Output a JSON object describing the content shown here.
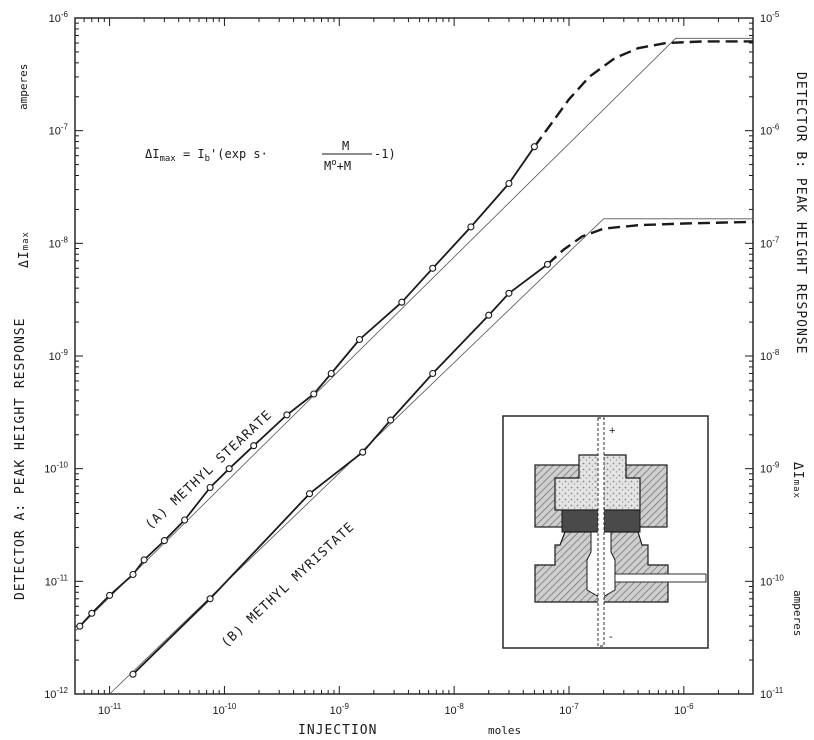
{
  "chart_data": {
    "type": "line",
    "x_scale": "log",
    "y_scale": "log",
    "xlim": [
      5e-12,
      4e-06
    ],
    "ylim_left": [
      1e-12,
      1e-06
    ],
    "ylim_right": [
      1e-11,
      1e-05
    ],
    "grid": false,
    "legend": "none",
    "x_ticks": [
      {
        "v": 1e-11,
        "m": "10",
        "e": "-11"
      },
      {
        "v": 1e-10,
        "m": "10",
        "e": "-10"
      },
      {
        "v": 1e-09,
        "m": "10",
        "e": "-9"
      },
      {
        "v": 1e-08,
        "m": "10",
        "e": "-8"
      },
      {
        "v": 1e-07,
        "m": "10",
        "e": "-7"
      },
      {
        "v": 1e-06,
        "m": "10",
        "e": "-6"
      }
    ],
    "y_left_ticks": [
      {
        "v": 1e-12,
        "m": "10",
        "e": "-12"
      },
      {
        "v": 1e-11,
        "m": "10",
        "e": "-11"
      },
      {
        "v": 1e-10,
        "m": "10",
        "e": "-10"
      },
      {
        "v": 1e-09,
        "m": "10",
        "e": "-9"
      },
      {
        "v": 1e-08,
        "m": "10",
        "e": "-8"
      },
      {
        "v": 1e-07,
        "m": "10",
        "e": "-7"
      },
      {
        "v": 1e-06,
        "m": "10",
        "e": "-6"
      }
    ],
    "y_right_ticks": [
      {
        "v": 1e-11,
        "m": "10",
        "e": "-11"
      },
      {
        "v": 1e-10,
        "m": "10",
        "e": "-10"
      },
      {
        "v": 1e-09,
        "m": "10",
        "e": "-9"
      },
      {
        "v": 1e-08,
        "m": "10",
        "e": "-8"
      },
      {
        "v": 1e-07,
        "m": "10",
        "e": "-7"
      },
      {
        "v": 1e-06,
        "m": "10",
        "e": "-6"
      },
      {
        "v": 1e-05,
        "m": "10",
        "e": "-5"
      }
    ],
    "xlabel": "INJECTION",
    "xunit": "moles",
    "ylabel_left": "DETECTOR A: PEAK HEIGHT RESPONSE",
    "ylabel_left_symbol": "ΔI",
    "ylabel_left_symbol_sub": "max",
    "ylabel_left_unit": "amperes",
    "ylabel_right": "DETECTOR B: PEAK HEIGHT RESPONSE",
    "ylabel_right_symbol": "ΔI",
    "ylabel_right_symbol_sub": "max",
    "ylabel_right_unit": "amperes",
    "equation": {
      "lhs": "ΔI",
      "lhs_sub": "max",
      "mid": " = I",
      "mid_sub": "b",
      "rest": "'(exp s·",
      "num": "M",
      "den_a": "M",
      "den_sup": "o",
      "den_b": "+M",
      "tail": "-1)"
    },
    "series": [
      {
        "name": "(A) METHYL STEARATE",
        "axis": "left",
        "points": [
          [
            5.5e-12,
            4e-12
          ],
          [
            7e-12,
            5.2e-12
          ],
          [
            1e-11,
            7.5e-12
          ],
          [
            1.6e-11,
            1.15e-11
          ],
          [
            2e-11,
            1.55e-11
          ],
          [
            3e-11,
            2.3e-11
          ],
          [
            4.5e-11,
            3.5e-11
          ],
          [
            7.5e-11,
            6.8e-11
          ],
          [
            1.1e-10,
            1e-10
          ],
          [
            1.8e-10,
            1.6e-10
          ],
          [
            3.5e-10,
            3e-10
          ],
          [
            6e-10,
            4.6e-10
          ],
          [
            8.5e-10,
            7e-10
          ],
          [
            1.5e-09,
            1.4e-09
          ],
          [
            3.5e-09,
            3e-09
          ],
          [
            6.5e-09,
            6e-09
          ],
          [
            1.4e-08,
            1.4e-08
          ],
          [
            3e-08,
            3.4e-08
          ],
          [
            5e-08,
            7.2e-08
          ]
        ],
        "fit_dashed": [
          [
            5e-08,
            7.2e-08
          ],
          [
            7e-08,
            1.15e-07
          ],
          [
            1e-07,
            1.9e-07
          ],
          [
            1.5e-07,
            3e-07
          ],
          [
            2.5e-07,
            4.4e-07
          ],
          [
            4e-07,
            5.4e-07
          ],
          [
            7e-07,
            6e-07
          ],
          [
            1.5e-06,
            6.2e-07
          ],
          [
            4e-06,
            6.2e-07
          ]
        ],
        "asymptote": [
          [
            5e-12,
            3.6e-12
          ],
          [
            8.5e-07,
            6.6e-07
          ],
          [
            4e-06,
            6.6e-07
          ]
        ]
      },
      {
        "name": "(B) METHYL MYRISTATE",
        "axis": "right",
        "points": [
          [
            1.6e-11,
            1.5e-11
          ],
          [
            7.5e-11,
            7e-11
          ],
          [
            5.5e-10,
            6e-10
          ],
          [
            1.6e-09,
            1.4e-09
          ],
          [
            2.8e-09,
            2.7e-09
          ],
          [
            6.5e-09,
            7e-09
          ],
          [
            2e-08,
            2.3e-08
          ],
          [
            3e-08,
            3.6e-08
          ],
          [
            6.5e-08,
            6.5e-08
          ]
        ],
        "fit_dashed": [
          [
            6.5e-08,
            6.5e-08
          ],
          [
            9e-08,
            8.8e-08
          ],
          [
            1.3e-07,
            1.15e-07
          ],
          [
            2e-07,
            1.35e-07
          ],
          [
            4e-07,
            1.45e-07
          ],
          [
            1e-06,
            1.5e-07
          ],
          [
            4e-06,
            1.55e-07
          ]
        ],
        "asymptote": [
          [
            1e-11,
            1e-11
          ],
          [
            2e-07,
            1.65e-07
          ],
          [
            4e-06,
            1.65e-07
          ]
        ]
      }
    ],
    "inset": {
      "plus": "+",
      "minus": "-"
    }
  }
}
